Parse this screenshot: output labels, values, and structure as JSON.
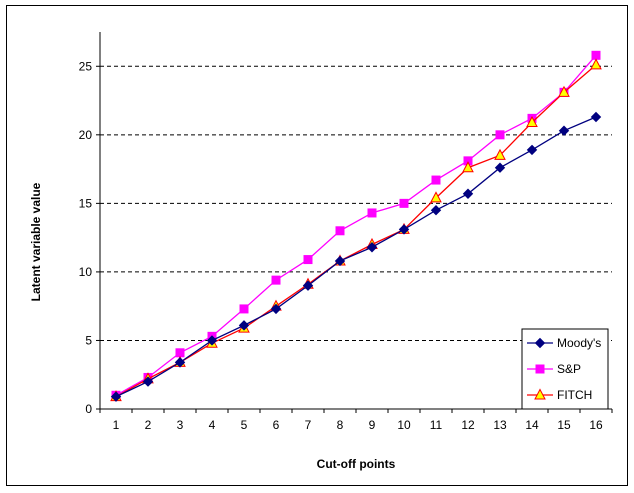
{
  "chart_data": {
    "type": "line",
    "title": "",
    "xlabel": "Cut-off points",
    "ylabel": "Latent variable value",
    "x": [
      1,
      2,
      3,
      4,
      5,
      6,
      7,
      8,
      9,
      10,
      11,
      12,
      13,
      14,
      15,
      16
    ],
    "ylim": [
      0,
      27.5
    ],
    "yticks": [
      0,
      5,
      10,
      15,
      20,
      25
    ],
    "grid": "horizontal-dashed",
    "legend_position": "bottom-right",
    "series": [
      {
        "name": "Moody's",
        "marker": "diamond",
        "color": "#000080",
        "values": [
          0.9,
          2.0,
          3.4,
          5.0,
          6.1,
          7.3,
          9.0,
          10.8,
          11.8,
          13.1,
          14.5,
          15.7,
          17.6,
          18.9,
          20.3,
          21.3
        ]
      },
      {
        "name": "S&P",
        "marker": "square",
        "color": "#ff00ff",
        "values": [
          1.0,
          2.3,
          4.1,
          5.3,
          7.3,
          9.4,
          10.9,
          13.0,
          14.3,
          15.0,
          16.7,
          18.1,
          20.0,
          21.2,
          23.1,
          25.8
        ]
      },
      {
        "name": "FITCH",
        "marker": "triangle",
        "color": "#ff0000",
        "fill": "#ffff00",
        "values": [
          0.9,
          2.2,
          3.4,
          4.8,
          5.9,
          7.5,
          9.1,
          10.8,
          12.0,
          13.1,
          15.4,
          17.6,
          18.5,
          20.9,
          23.1,
          25.1
        ]
      }
    ]
  }
}
